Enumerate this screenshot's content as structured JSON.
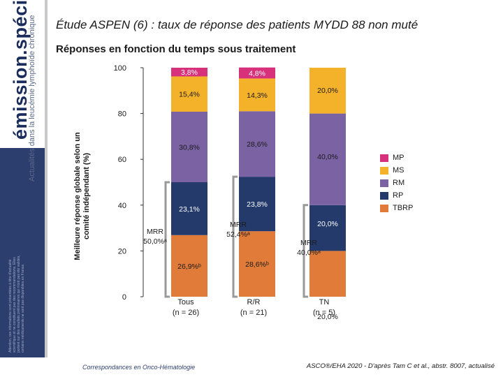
{
  "brand": {
    "name": "émission.spéciale",
    "tagline": "Actualités dans la leucémie lymphoïde chronique",
    "disclaimer": "Attention, ces informations sont présentées à titre d'actualité scientifique et ne constituent pas des recommandations. Elles portent sur des résultats préliminaires qui n'ont pas été validés, certains médicaments ne sont pas disponibles en France."
  },
  "header": {
    "title": "Étude ASPEN (6) :  taux de réponse des patients MYDD 88 non muté",
    "subtitle": "Réponses en fonction du temps sous traitement"
  },
  "chart_data": {
    "type": "bar",
    "stacked": true,
    "ylabel": "Meilleure réponse globale selon un comité indépendant (%)",
    "ylim": [
      0,
      100
    ],
    "yticks": [
      0,
      20,
      40,
      60,
      80,
      100
    ],
    "categories": [
      {
        "name": "Tous",
        "n": "(n = 26)"
      },
      {
        "name": "R/R",
        "n": "(n = 21)"
      },
      {
        "name": "TN",
        "n": "(n = 5)"
      }
    ],
    "series": [
      {
        "name": "TBRP",
        "color": "#e07b39",
        "values": [
          26.9,
          28.6,
          20.0
        ],
        "labels": [
          "26,9%ᵇ",
          "28,6%ᵇ",
          "20,0%"
        ]
      },
      {
        "name": "RP",
        "color": "#233a6b",
        "values": [
          23.1,
          23.8,
          20.0
        ],
        "labels": [
          "23,1%",
          "23,8%",
          "20,0%"
        ]
      },
      {
        "name": "RM",
        "color": "#7b62a3",
        "values": [
          30.8,
          28.6,
          40.0
        ],
        "labels": [
          "30,8%",
          "28,6%",
          "40,0%"
        ]
      },
      {
        "name": "MS",
        "color": "#f4b12a",
        "values": [
          15.4,
          14.3,
          20.0
        ],
        "labels": [
          "15,4%",
          "14,3%",
          "20,0%"
        ]
      },
      {
        "name": "MP",
        "color": "#d6317a",
        "values": [
          3.8,
          4.8,
          0
        ],
        "labels": [
          "3,8%",
          "4,8%",
          ""
        ]
      }
    ],
    "legend_order": [
      "MP",
      "MS",
      "RM",
      "RP",
      "TBRP"
    ],
    "annotations": [
      {
        "text": "MRR 50,0%ᵃ",
        "category": 0
      },
      {
        "text": "MRR 52,4%ᵃ",
        "category": 1
      },
      {
        "text": "MRR 40,0%ᵃ",
        "category": 2
      }
    ]
  },
  "footer": {
    "left": "Correspondances en Onco-Hématologie",
    "right": "ASCO®/EHA 2020 - D'après Tam C et al., abstr. 8007, actualisé"
  }
}
